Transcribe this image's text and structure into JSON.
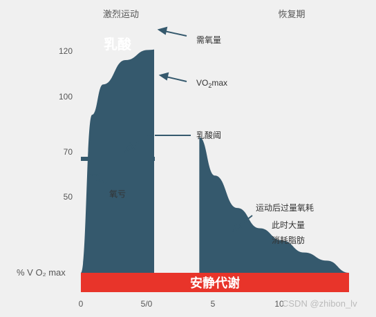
{
  "chart_data": {
    "type": "area",
    "title": "",
    "phase_labels": [
      "激烈运动",
      "恢复期"
    ],
    "ylabel": "% V O₂ max",
    "yticks": [
      "120",
      "100",
      "70",
      "50"
    ],
    "xticks": [
      "0",
      "5/0",
      "5",
      "10"
    ],
    "ylim": [
      0,
      120
    ],
    "series": [
      {
        "name": "",
        "x": [
          0,
          0.5,
          1,
          2,
          3,
          4,
          5,
          5.3,
          6,
          7,
          8,
          9,
          10,
          11,
          12
        ],
        "values": [
          0,
          78,
          93,
          105,
          110,
          112,
          112,
          67,
          48,
          32,
          22,
          16,
          10,
          6,
          0
        ]
      }
    ],
    "demand_level": 120,
    "lactate_threshold": 67,
    "annotations": {
      "oxygen_demand": "需氧量",
      "vo2max": "VO",
      "vo2max_sub": "2",
      "vo2max_suffix": "max",
      "lactate_threshold": "乳酸阈",
      "oxygen_deficit": "氧亏",
      "epoc_line1": "运动后过量氧耗",
      "epoc_line2": "此时大量",
      "epoc_line3": "消耗脂肪",
      "lactic_acid": "乳酸",
      "resting_metabolism": "安静代谢"
    },
    "colors": {
      "fill": "#35596d",
      "resting_bar": "#e8342a",
      "background": "#f0f0f0"
    },
    "watermark": "CSDN @zhibon_lv"
  }
}
